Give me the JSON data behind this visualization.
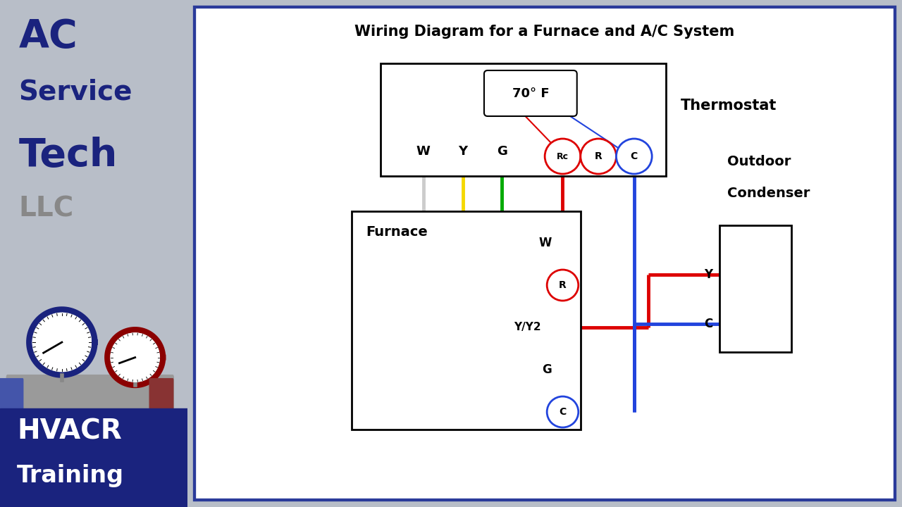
{
  "title": "Wiring Diagram for a Furnace and A/C System",
  "sidebar_color": "#b8bec8",
  "main_bg": "white",
  "outer_border_color": "#2244aa",
  "wire_colors": {
    "white_wire": "#cccccc",
    "yellow": "#f5d800",
    "green": "#00aa00",
    "red": "#dd0000",
    "blue": "#2244dd"
  },
  "title_fontsize": 16,
  "thermostat_label": "Thermostat",
  "furnace_label": "Furnace",
  "condenser_label1": "Outdoor",
  "condenser_label2": "Condenser",
  "temp_label": "70° F",
  "therm_terminals": [
    "W",
    "Y",
    "G",
    "Rc",
    "R",
    "C"
  ],
  "furn_terminals": [
    "W",
    "R",
    "Y/Y2",
    "G",
    "C"
  ],
  "cond_terminals": [
    "Y",
    "C"
  ],
  "brand_ac": "AC",
  "brand_service": "Service",
  "brand_tech": "Tech",
  "brand_llc": "LLC",
  "footer1": "HVACR",
  "footer2": "Training"
}
